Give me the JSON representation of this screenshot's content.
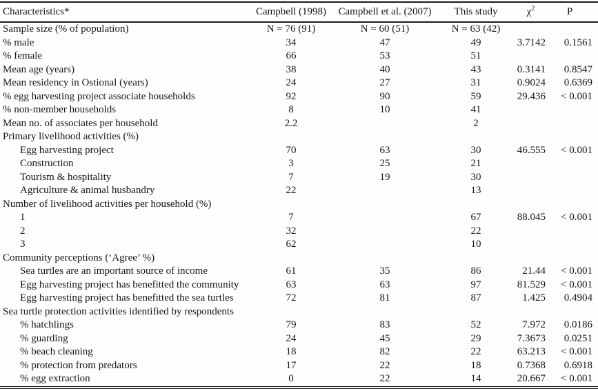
{
  "table": {
    "header": {
      "characteristics": "Characteristics*",
      "col_campbell_1998": "Campbell (1998)",
      "col_campbell_2007": "Campbell et al. (2007)",
      "col_this_study": "This study",
      "chi_base": "χ",
      "chi_sup": "2",
      "col_p": "P"
    },
    "rows": [
      {
        "label": "Sample size (% of population)",
        "indent": false,
        "v1": "N = 76 (91)",
        "v2": "N = 60 (51)",
        "v3": "N = 63 (42)",
        "chi": "",
        "p": ""
      },
      {
        "label": "% male",
        "indent": false,
        "v1": "34",
        "v2": "47",
        "v3": "49",
        "chi": "3.7142",
        "p": "0.1561"
      },
      {
        "label": "% female",
        "indent": false,
        "v1": "66",
        "v2": "53",
        "v3": "51",
        "chi": "",
        "p": ""
      },
      {
        "label": "Mean age (years)",
        "indent": false,
        "v1": "38",
        "v2": "40",
        "v3": "43",
        "chi": "0.3141",
        "p": "0.8547"
      },
      {
        "label": "Mean residency in Ostional (years)",
        "indent": false,
        "v1": "24",
        "v2": "27",
        "v3": "31",
        "chi": "0.9024",
        "p": "0.6369"
      },
      {
        "label": "% egg harvesting project associate households",
        "indent": false,
        "v1": "92",
        "v2": "90",
        "v3": "59",
        "chi": "29.436",
        "p": "< 0.001"
      },
      {
        "label": "% non-member households",
        "indent": false,
        "v1": "8",
        "v2": "10",
        "v3": "41",
        "chi": "",
        "p": ""
      },
      {
        "label": "Mean no. of associates per household",
        "indent": false,
        "v1": "2.2",
        "v2": "",
        "v3": "2",
        "chi": "",
        "p": ""
      },
      {
        "label": "Primary livelihood activities (%)",
        "indent": false,
        "v1": "",
        "v2": "",
        "v3": "",
        "chi": "",
        "p": ""
      },
      {
        "label": "Egg harvesting project",
        "indent": true,
        "v1": "70",
        "v2": "63",
        "v3": "30",
        "chi": "46.555",
        "p": "< 0.001"
      },
      {
        "label": "Construction",
        "indent": true,
        "v1": "3",
        "v2": "25",
        "v3": "21",
        "chi": "",
        "p": ""
      },
      {
        "label": "Tourism & hospitality",
        "indent": true,
        "v1": "7",
        "v2": "19",
        "v3": "30",
        "chi": "",
        "p": ""
      },
      {
        "label": "Agriculture & animal husbandry",
        "indent": true,
        "v1": "22",
        "v2": "",
        "v3": "13",
        "chi": "",
        "p": ""
      },
      {
        "label": "Number of livelihood activities per household (%)",
        "indent": false,
        "v1": "",
        "v2": "",
        "v3": "",
        "chi": "",
        "p": ""
      },
      {
        "label": "1",
        "indent": true,
        "v1": "7",
        "v2": "",
        "v3": "67",
        "chi": "88.045",
        "p": "< 0.001"
      },
      {
        "label": "2",
        "indent": true,
        "v1": "32",
        "v2": "",
        "v3": "22",
        "chi": "",
        "p": ""
      },
      {
        "label": "3",
        "indent": true,
        "v1": "62",
        "v2": "",
        "v3": "10",
        "chi": "",
        "p": ""
      },
      {
        "label": "Community perceptions (‘Agree’ %)",
        "indent": false,
        "v1": "",
        "v2": "",
        "v3": "",
        "chi": "",
        "p": ""
      },
      {
        "label": "Sea turtles are an important source of income",
        "indent": true,
        "v1": "61",
        "v2": "35",
        "v3": "86",
        "chi": "21.44",
        "p": "< 0.001"
      },
      {
        "label": "Egg harvesting project has benefitted the community",
        "indent": true,
        "v1": "63",
        "v2": "63",
        "v3": "97",
        "chi": "81.529",
        "p": "< 0.001"
      },
      {
        "label": "Egg harvesting project has benefitted the sea turtles",
        "indent": true,
        "v1": "72",
        "v2": "81",
        "v3": "87",
        "chi": "1.425",
        "p": "0.4904"
      },
      {
        "label": "Sea turtle protection activities identified by respondents",
        "indent": false,
        "v1": "",
        "v2": "",
        "v3": "",
        "chi": "",
        "p": ""
      },
      {
        "label": "% hatchlings",
        "indent": true,
        "v1": "79",
        "v2": "83",
        "v3": "52",
        "chi": "7.972",
        "p": "0.0186"
      },
      {
        "label": "% guarding",
        "indent": true,
        "v1": "24",
        "v2": "45",
        "v3": "29",
        "chi": "7.3673",
        "p": "0.0251"
      },
      {
        "label": "% beach cleaning",
        "indent": true,
        "v1": "18",
        "v2": "82",
        "v3": "22",
        "chi": "63.213",
        "p": "< 0.001"
      },
      {
        "label": "% protection from predators",
        "indent": true,
        "v1": "17",
        "v2": "22",
        "v3": "18",
        "chi": "0.7368",
        "p": "0.6918"
      },
      {
        "label": "% egg extraction",
        "indent": true,
        "v1": "0",
        "v2": "22",
        "v3": "14",
        "chi": "20.667",
        "p": "< 0.001"
      }
    ]
  }
}
